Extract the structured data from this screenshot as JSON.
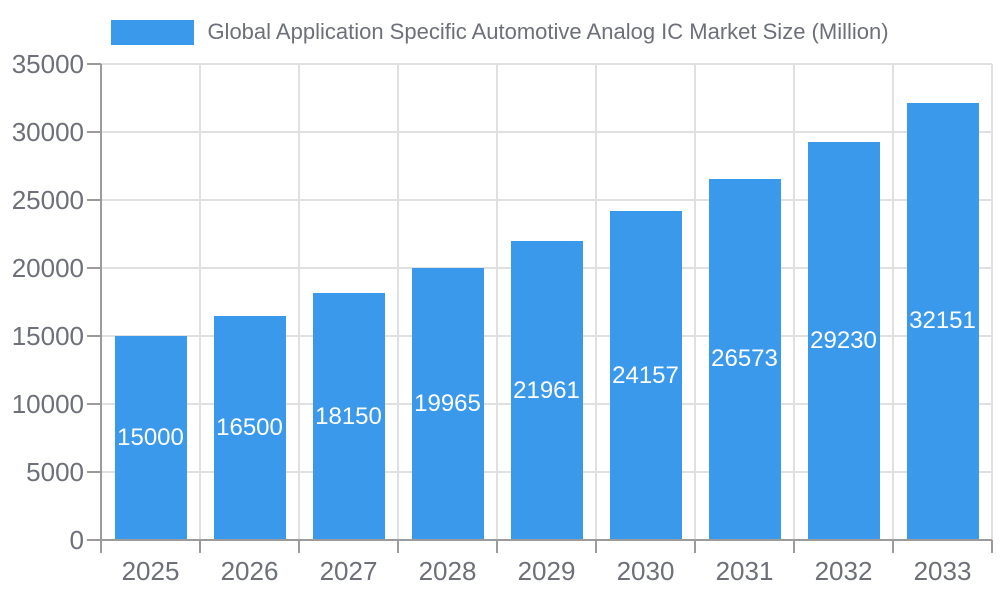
{
  "chart_data": {
    "type": "bar",
    "title": "Global Application Specific Automotive Analog IC Market Size (Million)",
    "legend": {
      "label": "Global Application Specific Automotive Analog IC Market Size (Million)",
      "position": "top-center",
      "swatch_color": "#3B99EC"
    },
    "categories": [
      "2025",
      "2026",
      "2027",
      "2028",
      "2029",
      "2030",
      "2031",
      "2032",
      "2033"
    ],
    "series": [
      {
        "name": "Global Application Specific Automotive Analog IC Market Size (Million)",
        "color": "#3B99EC",
        "values": [
          15000,
          16500,
          18150,
          19965,
          21961,
          24157,
          26573,
          29230,
          32151
        ]
      }
    ],
    "xlabel": "",
    "ylabel": "",
    "ylim": [
      0,
      35000
    ],
    "yticks": [
      0,
      5000,
      10000,
      15000,
      20000,
      25000,
      30000,
      35000
    ],
    "grid": true,
    "value_labels": {
      "position": "inside-center",
      "color": "#FFFFFF"
    },
    "style": {
      "background": "#FFFFFF",
      "axis_color": "#9B9B9B",
      "grid_color": "#E0E0E0",
      "text_color": "#6E7079"
    }
  }
}
